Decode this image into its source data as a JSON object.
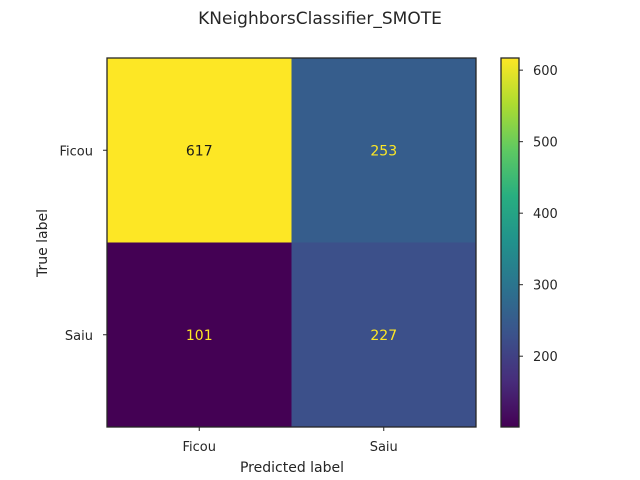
{
  "chart_data": {
    "type": "heatmap",
    "title": "KNeighborsClassifier_SMOTE",
    "xlabel": "Predicted label",
    "ylabel": "True label",
    "x_categories": [
      "Ficou",
      "Saiu"
    ],
    "y_categories": [
      "Ficou",
      "Saiu"
    ],
    "matrix": [
      [
        617,
        253
      ],
      [
        101,
        227
      ]
    ],
    "colormap": "viridis",
    "colorbar": {
      "ticks": [
        200,
        300,
        400,
        500,
        600
      ],
      "range": [
        101,
        617
      ]
    },
    "cell_text_colors": {
      "on_light": "#1a1a1a",
      "on_dark": "#fde725"
    },
    "grid": false
  }
}
